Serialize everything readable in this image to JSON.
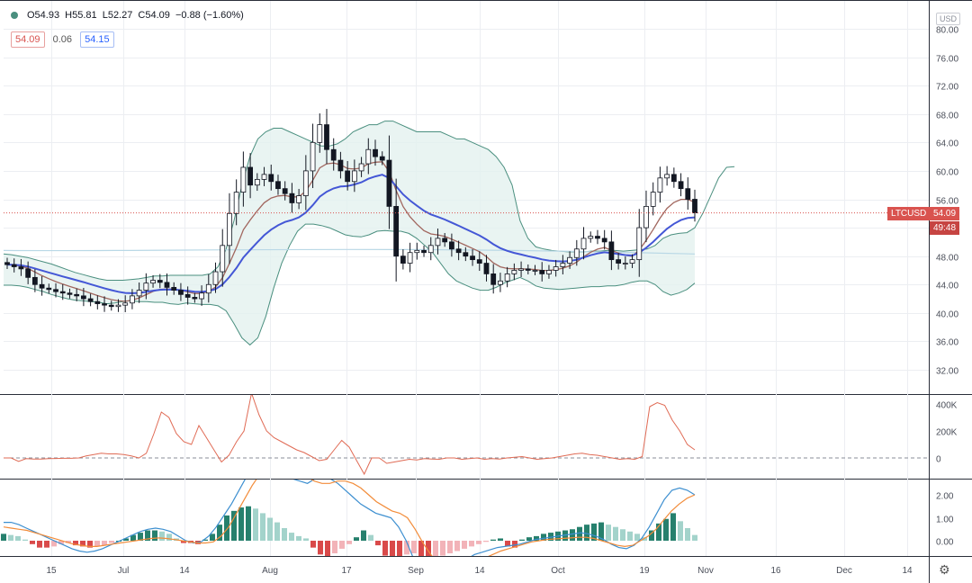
{
  "header": {
    "open": "O54.93",
    "high": "H55.81",
    "low": "L52.27",
    "close": "C54.09",
    "change": "−0.88 (−1.60%)",
    "bb_upper": "54.09",
    "bb_width": "0.06",
    "bb_basis": "54.15"
  },
  "currency_label": "USD",
  "symbol_tag": "LTCUSD",
  "last_price": "54.09",
  "countdown": "49:48",
  "colors": {
    "up": "#ffffff",
    "wick": "#131722",
    "bb": "#4a8f7f",
    "ma_red": "#a1665e",
    "ma_blue": "#4457d6",
    "volume": "#e06b55",
    "macd": "#3d8fd0",
    "signal": "#f28c3a",
    "hist_up": "#26806d",
    "hist_dn": "#d94a4a"
  },
  "chart_data": [
    {
      "type": "line",
      "title": "LTCUSD",
      "description_series": "candlestick price with Bollinger Bands and moving averages",
      "x_labels": [
        "15",
        "Jul",
        "14",
        "Aug",
        "17",
        "Sep",
        "14",
        "Oct",
        "19",
        "Nov",
        "16",
        "Dec",
        "14"
      ],
      "ylim": [
        30,
        80
      ],
      "y_ticks": [
        "80.00",
        "76.00",
        "72.00",
        "68.00",
        "64.00",
        "60.00",
        "56.00",
        "52.00",
        "48.00",
        "44.00",
        "40.00",
        "36.00",
        "32.00"
      ],
      "grid": true,
      "series": [
        {
          "name": "",
          "values": [
            46.8,
            46.5,
            46.2,
            45.0,
            44.0,
            43.5,
            43.3,
            43.0,
            42.8,
            42.6,
            42.4,
            42.0,
            41.6,
            41.3,
            41.1,
            40.9,
            41.1,
            41.4,
            42.4,
            43.2,
            44.2,
            44.6,
            44.3,
            43.6,
            43.2,
            42.6,
            42.2,
            42.0,
            42.8,
            44.0,
            45.8,
            49.5,
            54.0,
            57.0,
            60.5,
            58.0,
            58.8,
            59.5,
            58.5,
            57.5,
            56.8,
            55.5,
            56.5,
            60.0,
            64.0,
            66.5,
            63.0,
            61.5,
            60.0,
            58.5,
            60.0,
            61.0,
            63.0,
            62.0,
            61.5,
            55.0,
            48.0,
            47.0,
            48.5,
            48.8,
            48.5,
            49.5,
            50.5,
            50.0,
            49.0,
            48.5,
            48.0,
            47.5,
            47.0,
            45.5,
            44.0,
            44.5,
            45.5,
            46.0,
            46.2,
            46.0,
            46.0,
            45.5,
            46.0,
            46.5,
            47.0,
            47.8,
            49.0,
            50.5,
            50.8,
            50.5,
            50.0,
            47.5,
            47.0,
            47.0,
            47.5,
            52.0,
            55.0,
            57.0,
            59.0,
            59.5,
            58.5,
            57.5,
            56.0,
            54.09
          ]
        },
        {
          "name": "",
          "values": [
            48.3,
            48.2,
            48.0,
            47.8,
            47.5,
            47.2,
            46.9,
            46.5,
            46.1,
            45.7,
            45.4,
            45.1,
            44.8,
            44.6,
            44.6,
            44.6,
            44.7,
            44.8,
            45.0,
            45.2,
            45.2,
            45.3,
            45.3,
            45.3,
            45.3,
            45.3,
            45.5,
            46.5,
            49.0,
            53.0,
            58.0,
            62.0,
            64.5,
            65.5,
            66.0,
            66.0,
            65.5,
            65.0,
            64.5,
            64.0,
            63.5,
            63.5,
            63.8,
            64.5,
            65.5,
            66.0,
            66.5,
            66.5,
            67.0,
            67.0,
            66.5,
            66.0,
            65.5,
            65.5,
            65.5,
            65.5,
            65.0,
            64.5,
            64.5,
            64.0,
            63.5,
            63.0,
            62.0,
            60.5,
            58.0,
            53.0,
            50.5,
            49.3,
            49.0,
            48.8,
            48.7,
            48.6,
            48.6,
            48.6,
            48.7,
            48.7,
            48.8,
            48.8,
            48.7,
            48.8,
            48.9,
            49.0,
            49.5,
            50.5,
            51.0,
            51.2,
            51.3,
            52.0,
            54.0,
            56.5,
            59.0,
            60.5,
            60.6
          ]
        },
        {
          "name": "",
          "values": [
            43.9,
            43.9,
            43.8,
            43.6,
            43.3,
            43.0,
            42.6,
            42.3,
            42.0,
            41.8,
            41.7,
            41.6,
            41.5,
            41.3,
            41.4,
            41.6,
            41.7,
            41.6,
            41.6,
            41.5,
            41.5,
            41.3,
            41.2,
            41.4,
            41.3,
            41.2,
            41.2,
            41.0,
            40.3,
            38.5,
            36.5,
            35.5,
            36.5,
            39.5,
            43.5,
            47.0,
            49.5,
            51.5,
            52.5,
            52.5,
            52.3,
            52.0,
            51.5,
            51.0,
            50.8,
            50.7,
            51.0,
            51.5,
            51.6,
            51.5,
            51.5,
            51.2,
            50.5,
            49.5,
            48.5,
            47.0,
            45.5,
            44.5,
            44.0,
            43.5,
            43.2,
            43.2,
            43.6,
            44.2,
            44.6,
            45.0,
            44.5,
            43.8,
            43.5,
            43.4,
            43.3,
            43.4,
            43.5,
            43.6,
            43.7,
            43.7,
            43.8,
            43.8,
            44.0,
            44.3,
            44.5,
            44.5,
            44.0,
            43.0,
            42.5,
            42.8,
            43.3,
            44.2
          ]
        }
      ]
    },
    {
      "type": "line",
      "title": "",
      "ylim": [
        -50000,
        460000
      ],
      "y_ticks": [
        "400K",
        "200K",
        "0"
      ],
      "values": [
        0,
        0,
        -25000,
        -5000,
        -8000,
        -8000,
        -5000,
        -4000,
        -3000,
        -3000,
        0,
        15000,
        25000,
        35000,
        30000,
        30000,
        25000,
        15000,
        0,
        35000,
        180000,
        340000,
        300000,
        180000,
        120000,
        100000,
        240000,
        150000,
        60000,
        -30000,
        20000,
        120000,
        200000,
        480000,
        320000,
        200000,
        150000,
        120000,
        90000,
        60000,
        40000,
        10000,
        -20000,
        -10000,
        60000,
        130000,
        80000,
        -20000,
        -120000,
        0,
        0,
        -40000,
        -30000,
        -20000,
        -10000,
        -15000,
        -5000,
        -8000,
        -10000,
        0,
        0,
        -10000,
        -5000,
        0,
        -10000,
        -5000,
        -8000,
        0,
        5000,
        10000,
        0,
        -10000,
        -5000,
        0,
        10000,
        20000,
        30000,
        35000,
        25000,
        20000,
        10000,
        0,
        -10000,
        -5000,
        -10000,
        10000,
        380000,
        410000,
        390000,
        280000,
        200000,
        100000,
        60000
      ]
    },
    {
      "type": "bar",
      "title": "",
      "ylim": [
        -1.0,
        2.8
      ],
      "y_ticks": [
        "2.00",
        "1.00",
        "0.00"
      ],
      "values": [
        0.3,
        0.25,
        0.2,
        0.05,
        -0.15,
        -0.3,
        -0.3,
        -0.25,
        -0.15,
        -0.1,
        -0.2,
        -0.25,
        -0.3,
        -0.25,
        -0.2,
        -0.1,
        0.0,
        0.1,
        0.25,
        0.35,
        0.45,
        0.45,
        0.4,
        0.3,
        0.1,
        -0.1,
        -0.1,
        -0.15,
        0.05,
        0.3,
        0.7,
        1.1,
        1.3,
        1.45,
        1.5,
        1.4,
        1.2,
        1.0,
        0.8,
        0.55,
        0.35,
        0.2,
        0.1,
        -0.3,
        -0.6,
        -0.7,
        -0.55,
        -0.35,
        -0.15,
        0.15,
        0.45,
        0.25,
        -0.2,
        -0.65,
        -0.75,
        -0.75,
        -0.6,
        -0.55,
        -0.7,
        -0.95,
        -0.85,
        -0.65,
        -0.55,
        -0.45,
        -0.35,
        -0.25,
        -0.15,
        -0.05,
        0.05,
        0.1,
        -0.25,
        -0.3,
        0.05,
        0.15,
        0.2,
        0.3,
        0.35,
        0.4,
        0.45,
        0.5,
        0.6,
        0.7,
        0.75,
        0.8,
        0.7,
        0.6,
        0.5,
        0.4,
        0.3,
        0.15,
        0.45,
        0.75,
        0.95,
        1.2,
        0.85,
        0.55,
        0.25
      ],
      "macd_line": [
        0.8,
        0.8,
        0.7,
        0.55,
        0.4,
        0.25,
        0.1,
        -0.05,
        -0.2,
        -0.35,
        -0.45,
        -0.5,
        -0.45,
        -0.35,
        -0.2,
        -0.05,
        0.1,
        0.25,
        0.4,
        0.5,
        0.55,
        0.5,
        0.4,
        0.2,
        0.0,
        -0.1,
        -0.05,
        0.2,
        0.6,
        1.1,
        1.6,
        2.2,
        2.8,
        3.2,
        3.3,
        3.3,
        3.1,
        2.8,
        2.7,
        2.6,
        2.5,
        2.7,
        2.8,
        2.7,
        2.5,
        2.2,
        1.9,
        1.6,
        1.4,
        1.2,
        1.1,
        1.0,
        0.6,
        0.0,
        -0.8,
        -1.4,
        -1.7,
        -1.8,
        -1.6,
        -1.3,
        -1.0,
        -0.8,
        -0.6,
        -0.5,
        -0.4,
        -0.3,
        -0.25,
        -0.2,
        -0.15,
        -0.05,
        0.05,
        0.1,
        0.15,
        0.2,
        0.25,
        0.3,
        0.35,
        0.3,
        0.2,
        0.05,
        -0.15,
        -0.3,
        -0.35,
        -0.2,
        0.1,
        0.6,
        1.2,
        1.8,
        2.2,
        2.3,
        2.2,
        2.0
      ],
      "signal_line": [
        0.6,
        0.55,
        0.5,
        0.45,
        0.35,
        0.25,
        0.15,
        0.05,
        -0.05,
        -0.15,
        -0.2,
        -0.25,
        -0.25,
        -0.2,
        -0.15,
        -0.1,
        -0.05,
        0.0,
        0.05,
        0.1,
        0.12,
        0.1,
        0.05,
        0.0,
        -0.05,
        -0.1,
        -0.1,
        -0.05,
        0.2,
        0.6,
        1.2,
        1.8,
        2.4,
        2.9,
        3.2,
        3.3,
        3.3,
        3.2,
        3.0,
        2.8,
        2.6,
        2.5,
        2.5,
        2.6,
        2.6,
        2.5,
        2.3,
        2.0,
        1.7,
        1.5,
        1.3,
        1.2,
        1.0,
        0.5,
        -0.1,
        -0.6,
        -1.0,
        -1.2,
        -1.3,
        -1.2,
        -1.05,
        -0.9,
        -0.75,
        -0.6,
        -0.45,
        -0.35,
        -0.25,
        -0.15,
        -0.05,
        0.0,
        0.05,
        0.08,
        0.1,
        0.12,
        0.15,
        0.15,
        0.1,
        0.0,
        -0.1,
        -0.2,
        -0.25,
        -0.2,
        0.0,
        0.2,
        0.5,
        0.9,
        1.3,
        1.6,
        1.85,
        2.0
      ]
    }
  ]
}
